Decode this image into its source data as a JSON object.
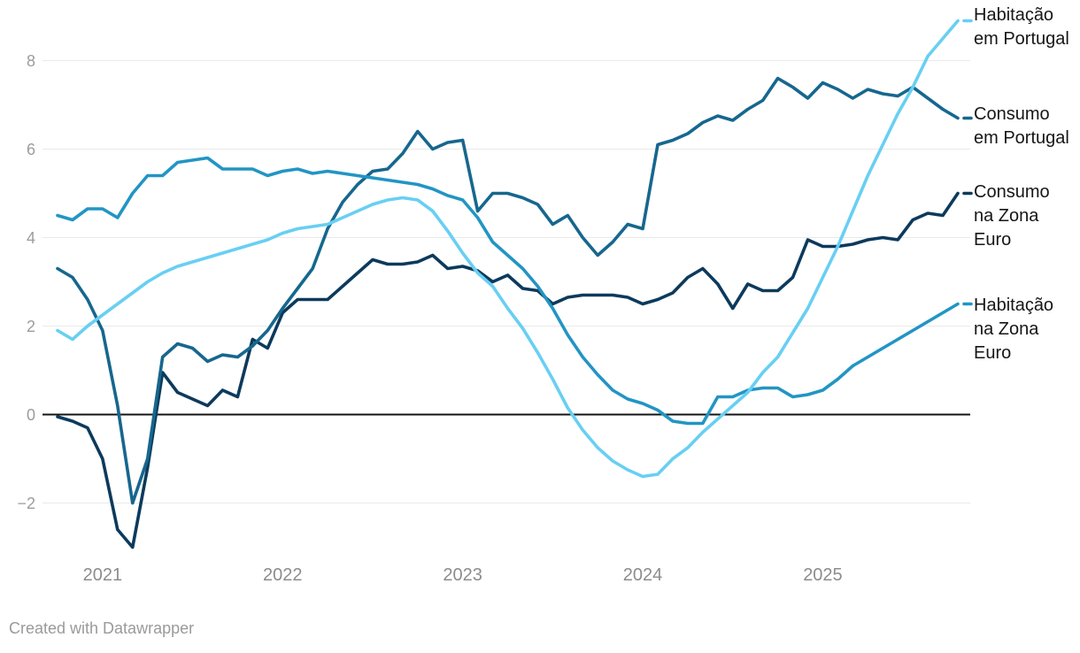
{
  "footer": {
    "text": "Created with Datawrapper"
  },
  "legend": [
    {
      "label": "Habitação em Portugal"
    },
    {
      "label": "Consumo em Portugal"
    },
    {
      "label": "Consumo na Zona Euro"
    },
    {
      "label": "Habitação na Zona Euro"
    }
  ],
  "chart_data": {
    "type": "line",
    "title": "",
    "xlabel": "",
    "ylabel": "",
    "frequency": "monthly",
    "x_start": "2020-10",
    "x_end": "2025-10",
    "ylim": [
      -3.2,
      9.0
    ],
    "grid": "horizontal",
    "zero_line": true,
    "legend_position": "right",
    "y_ticks": [
      {
        "label": "8",
        "value": 8
      },
      {
        "label": "6",
        "value": 6
      },
      {
        "label": "4",
        "value": 4
      },
      {
        "label": "2",
        "value": 2
      },
      {
        "label": "0",
        "value": 0
      },
      {
        "label": "−2",
        "value": -2
      }
    ],
    "x_ticks": [
      {
        "label": "2021",
        "month_index": 3
      },
      {
        "label": "2022",
        "month_index": 15
      },
      {
        "label": "2023",
        "month_index": 27
      },
      {
        "label": "2024",
        "month_index": 39
      },
      {
        "label": "2025",
        "month_index": 51
      }
    ],
    "series": [
      {
        "name": "Consumo na Zona Euro",
        "color": "#0c3a5c",
        "values": [
          -0.05,
          -0.15,
          -0.3,
          -1.0,
          -2.6,
          -3.0,
          -1.2,
          0.95,
          0.5,
          0.35,
          0.2,
          0.55,
          0.4,
          1.7,
          1.5,
          2.3,
          2.6,
          2.6,
          2.6,
          2.9,
          3.2,
          3.5,
          3.4,
          3.4,
          3.45,
          3.6,
          3.3,
          3.35,
          3.25,
          3.0,
          3.15,
          2.85,
          2.8,
          2.5,
          2.65,
          2.7,
          2.7,
          2.7,
          2.65,
          2.5,
          2.6,
          2.75,
          3.1,
          3.3,
          2.95,
          2.4,
          2.95,
          2.8,
          2.8,
          3.1,
          3.95,
          3.8,
          3.8,
          3.85,
          3.95,
          4.0,
          3.95,
          4.4,
          4.55,
          4.5,
          5.0
        ]
      },
      {
        "name": "Consumo em Portugal",
        "color": "#16678e",
        "values": [
          3.3,
          3.1,
          2.6,
          1.9,
          0.2,
          -2.0,
          -1.0,
          1.3,
          1.6,
          1.5,
          1.2,
          1.35,
          1.3,
          1.55,
          1.9,
          2.4,
          2.85,
          3.3,
          4.2,
          4.8,
          5.2,
          5.5,
          5.55,
          5.9,
          6.4,
          6.0,
          6.15,
          6.2,
          4.6,
          5.0,
          5.0,
          4.9,
          4.75,
          4.3,
          4.5,
          4.0,
          3.6,
          3.9,
          4.3,
          4.2,
          6.1,
          6.2,
          6.35,
          6.6,
          6.75,
          6.65,
          6.9,
          7.1,
          7.6,
          7.4,
          7.15,
          7.5,
          7.35,
          7.15,
          7.35,
          7.25,
          7.2,
          7.4,
          7.15,
          6.9,
          6.7
        ]
      },
      {
        "name": "Habitação na Zona Euro",
        "color": "#2295c4",
        "values": [
          4.5,
          4.4,
          4.65,
          4.65,
          4.45,
          5.0,
          5.4,
          5.4,
          5.7,
          5.75,
          5.8,
          5.55,
          5.55,
          5.55,
          5.4,
          5.5,
          5.55,
          5.45,
          5.5,
          5.45,
          5.4,
          5.35,
          5.3,
          5.25,
          5.2,
          5.1,
          4.95,
          4.85,
          4.45,
          3.9,
          3.6,
          3.3,
          2.9,
          2.4,
          1.8,
          1.3,
          0.9,
          0.55,
          0.35,
          0.25,
          0.1,
          -0.15,
          -0.2,
          -0.2,
          0.4,
          0.4,
          0.55,
          0.6,
          0.6,
          0.4,
          0.45,
          0.55,
          0.8,
          1.1,
          1.3,
          1.5,
          1.7,
          1.9,
          2.1,
          2.3,
          2.5
        ]
      },
      {
        "name": "Habitação em Portugal",
        "color": "#68cff3",
        "values": [
          1.9,
          1.7,
          2.0,
          2.25,
          2.5,
          2.75,
          3.0,
          3.2,
          3.35,
          3.45,
          3.55,
          3.65,
          3.75,
          3.85,
          3.95,
          4.1,
          4.2,
          4.25,
          4.3,
          4.45,
          4.6,
          4.75,
          4.85,
          4.9,
          4.85,
          4.6,
          4.15,
          3.65,
          3.2,
          2.9,
          2.4,
          1.95,
          1.4,
          0.8,
          0.15,
          -0.35,
          -0.75,
          -1.05,
          -1.25,
          -1.4,
          -1.35,
          -1.0,
          -0.75,
          -0.4,
          -0.1,
          0.2,
          0.5,
          0.95,
          1.3,
          1.85,
          2.4,
          3.1,
          3.8,
          4.6,
          5.4,
          6.1,
          6.8,
          7.4,
          8.1,
          8.5,
          8.9
        ]
      }
    ]
  }
}
